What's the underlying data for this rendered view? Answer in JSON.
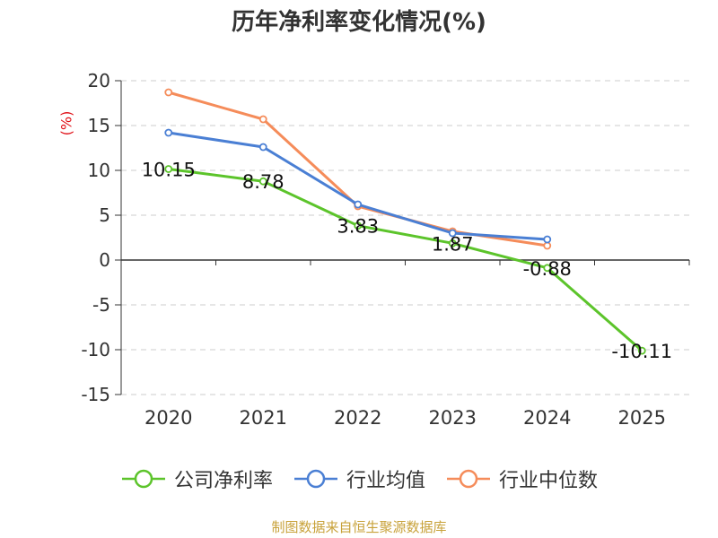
{
  "chart_data": {
    "type": "line",
    "title": "历年净利率变化情况(%)",
    "xlabel": "",
    "ylabel": "(%)",
    "categories": [
      "2020",
      "2021",
      "2022",
      "2023",
      "2024",
      "2025"
    ],
    "ylim": [
      -15,
      20
    ],
    "yticks": [
      "20",
      "15",
      "10",
      "5",
      "0",
      "-5",
      "-10",
      "-15"
    ],
    "grid": true,
    "legend_position": "bottom",
    "series": [
      {
        "name": "公司净利率",
        "color": "#5cc42b",
        "values": [
          10.15,
          8.78,
          3.83,
          1.87,
          -0.88,
          -10.11
        ],
        "labels": [
          "10.15",
          "8.78",
          "3.83",
          "1.87",
          "-0.88",
          "-10.11"
        ]
      },
      {
        "name": "行业均值",
        "color": "#4a7fd4",
        "values": [
          14.2,
          12.6,
          6.2,
          3.0,
          2.3,
          null
        ]
      },
      {
        "name": "行业中位数",
        "color": "#f58c5a",
        "values": [
          18.7,
          15.7,
          6.0,
          3.2,
          1.6,
          null
        ]
      }
    ]
  },
  "source": "制图数据来自恒生聚源数据库"
}
